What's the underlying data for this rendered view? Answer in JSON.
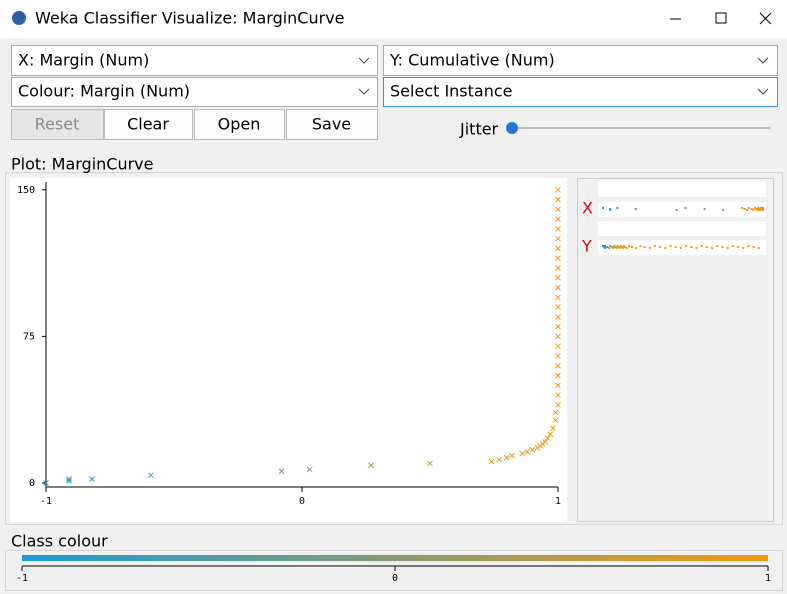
{
  "window": {
    "title": "Weka Classifier Visualize: MarginCurve"
  },
  "controls": {
    "x_axis": "X: Margin (Num)",
    "y_axis": "Y: Cumulative (Num)",
    "colour": "Colour: Margin (Num)",
    "instance": "Select Instance",
    "buttons": [
      "Reset",
      "Clear",
      "Open",
      "Save"
    ],
    "jitter": "Jitter"
  },
  "plot": {
    "title": "Plot: MarginCurve",
    "type": "scatter",
    "x": [
      -1,
      -0.91,
      -0.91,
      -0.82,
      -0.59,
      -0.08,
      0.03,
      0.27,
      0.5,
      0.74,
      0.77,
      0.8,
      0.82,
      0.86,
      0.88,
      0.9,
      0.92,
      0.93,
      0.94,
      0.95,
      0.96,
      0.97,
      0.98,
      0.99,
      0.99,
      1,
      1,
      1,
      1,
      1,
      1,
      1,
      1,
      1,
      1,
      1,
      1,
      1,
      1,
      1,
      1,
      1,
      1,
      1,
      1,
      1,
      1,
      1
    ],
    "y": [
      0,
      1,
      2,
      2,
      4,
      6,
      7,
      9,
      10,
      11,
      12,
      13,
      14,
      15,
      16,
      17,
      18,
      19,
      20,
      21,
      23,
      25,
      28,
      32,
      36,
      40,
      45,
      50,
      55,
      60,
      65,
      70,
      75,
      80,
      85,
      90,
      95,
      100,
      105,
      110,
      115,
      120,
      125,
      130,
      135,
      140,
      145,
      150
    ],
    "xlim": [
      -1,
      1
    ],
    "ylim": [
      0,
      154
    ],
    "xticks": [
      -1,
      0,
      1
    ],
    "yticks": [
      0,
      75,
      150
    ],
    "colour_scale": [
      "#1a9bd7",
      "#f39a0e"
    ]
  },
  "attribute_panel": {
    "x_label": "X",
    "y_label": "Y"
  },
  "class_colour": {
    "title": "Class colour",
    "ticks": [
      -1,
      0,
      1
    ]
  }
}
